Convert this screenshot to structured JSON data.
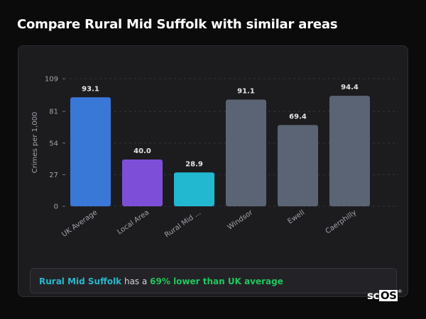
{
  "page": {
    "title": "Compare Rural Mid Suffolk with similar areas"
  },
  "summary": {
    "area": "Rural Mid Suffolk",
    "middle": " has a ",
    "stat": "69% lower than UK average"
  },
  "logo": {
    "text_plain": "sc",
    "text_boxed": "OS",
    "mark": "®"
  },
  "colors": {
    "uk_average": "#3a78d8",
    "local_area": "#7d4fd8",
    "selected_area": "#22b8d0",
    "comparison": "#5a6474",
    "area_highlight": "#2ab5c9",
    "stat_highlight": "#22c55e"
  },
  "chart_data": {
    "type": "bar",
    "ylabel": "Crimes per 1,000",
    "ylim": [
      0,
      109
    ],
    "yticks": [
      0,
      27,
      54,
      81,
      109
    ],
    "grid": "dashed horizontal",
    "categories": [
      "UK Average",
      "Local Area",
      "Rural Mid ...",
      "Windsor",
      "Ewell",
      "Caerphilly"
    ],
    "values": [
      93.1,
      40.0,
      28.9,
      91.1,
      69.4,
      94.4
    ],
    "value_labels": [
      "93.1",
      "40.0",
      "28.9",
      "91.1",
      "69.4",
      "94.4"
    ],
    "bar_colors": [
      "#3a78d8",
      "#7d4fd8",
      "#22b8d0",
      "#5a6474",
      "#5a6474",
      "#5a6474"
    ]
  }
}
